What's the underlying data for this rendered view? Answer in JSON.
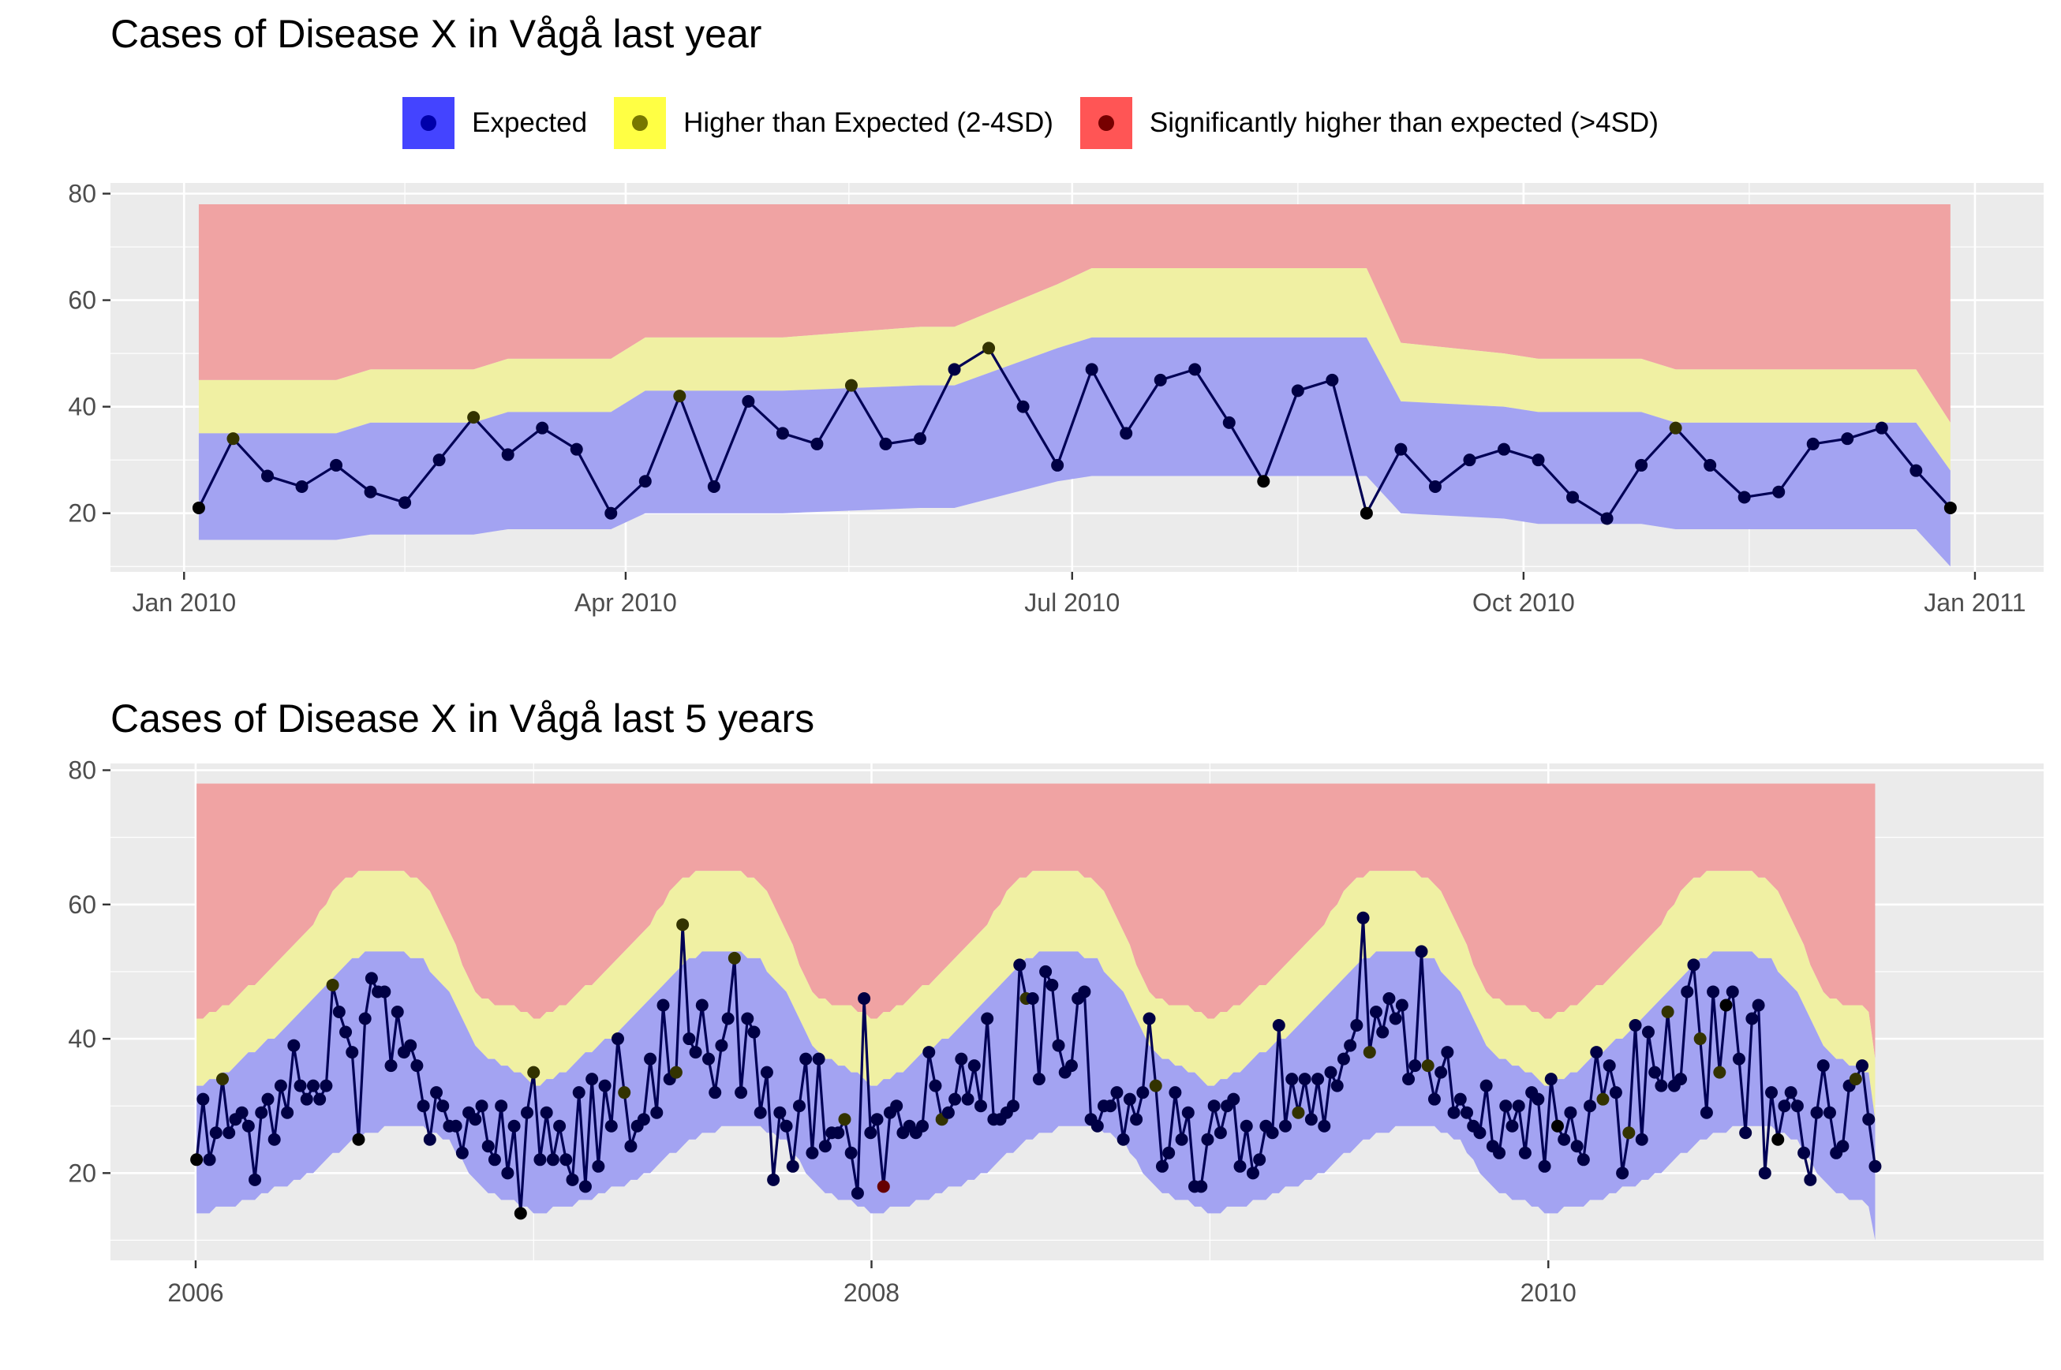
{
  "legend": {
    "items": [
      {
        "label": "Expected",
        "fill": "#4444ff",
        "dot": "#0000aa"
      },
      {
        "label": "Higher than Expected (2-4SD)",
        "fill": "#ffff44",
        "dot": "#777700"
      },
      {
        "label": "Significantly higher than expected (>4SD)",
        "fill": "#ff5555",
        "dot": "#770000"
      }
    ]
  },
  "colors": {
    "panel_bg": "#ebebeb",
    "grid": "#ffffff",
    "expected_band": "#a3a3f2",
    "higher_band": "#f0f0a3",
    "significant_band": "#f0a3a3",
    "line": "#000055",
    "point_expected": "#000044",
    "point_higher": "#333300",
    "point_significant": "#660000"
  },
  "chart_data": [
    {
      "type": "line",
      "title": "Cases of Disease X in Vågå last year",
      "xlabel": "",
      "ylabel": "",
      "x_range": [
        "2009-12-17",
        "2011-01-15"
      ],
      "ylim": [
        9,
        82
      ],
      "y_ticks": [
        20,
        40,
        60,
        80
      ],
      "x_ticks": [
        {
          "date": "2010-01-01",
          "label": "Jan 2010"
        },
        {
          "date": "2010-04-01",
          "label": "Apr 2010"
        },
        {
          "date": "2010-07-01",
          "label": "Jul 2010"
        },
        {
          "date": "2010-10-01",
          "label": "Oct 2010"
        },
        {
          "date": "2011-01-01",
          "label": "Jan 2011"
        }
      ],
      "band_dates": [
        "2010-01-04",
        "2010-02-01",
        "2010-02-08",
        "2010-03-01",
        "2010-03-08",
        "2010-03-29",
        "2010-04-05",
        "2010-05-03",
        "2010-05-31",
        "2010-06-07",
        "2010-06-28",
        "2010-07-05",
        "2010-08-23",
        "2010-08-30",
        "2010-09-06",
        "2010-09-27",
        "2010-10-04",
        "2010-10-25",
        "2010-11-01",
        "2010-12-20",
        "2010-12-27"
      ],
      "band_lower": [
        15,
        15,
        16,
        16,
        17,
        17,
        20,
        20,
        21,
        21,
        26,
        27,
        27,
        27,
        20,
        19,
        18,
        18,
        17,
        17,
        10
      ],
      "band_upper_expected": [
        35,
        35,
        37,
        37,
        39,
        39,
        43,
        43,
        44,
        44,
        51,
        53,
        53,
        53,
        41,
        40,
        39,
        39,
        37,
        37,
        28
      ],
      "band_upper_higher": [
        45,
        45,
        47,
        47,
        49,
        49,
        53,
        53,
        55,
        55,
        63,
        66,
        66,
        66,
        52,
        50,
        49,
        49,
        47,
        47,
        37
      ],
      "band_top": 78,
      "points": {
        "dates": [
          "2010-01-04",
          "2010-01-11",
          "2010-01-18",
          "2010-01-25",
          "2010-02-01",
          "2010-02-08",
          "2010-02-15",
          "2010-02-22",
          "2010-03-01",
          "2010-03-08",
          "2010-03-15",
          "2010-03-22",
          "2010-03-29",
          "2010-04-05",
          "2010-04-12",
          "2010-04-19",
          "2010-04-26",
          "2010-05-03",
          "2010-05-10",
          "2010-05-17",
          "2010-05-24",
          "2010-05-31",
          "2010-06-07",
          "2010-06-14",
          "2010-06-21",
          "2010-06-28",
          "2010-07-05",
          "2010-07-12",
          "2010-07-19",
          "2010-07-26",
          "2010-08-02",
          "2010-08-09",
          "2010-08-16",
          "2010-08-23",
          "2010-08-30",
          "2010-09-06",
          "2010-09-13",
          "2010-09-20",
          "2010-09-27",
          "2010-10-04",
          "2010-10-11",
          "2010-10-18",
          "2010-10-25",
          "2010-11-01",
          "2010-11-08",
          "2010-11-15",
          "2010-11-22",
          "2010-11-29",
          "2010-12-06",
          "2010-12-13",
          "2010-12-20",
          "2010-12-27"
        ],
        "values": [
          21,
          34,
          27,
          25,
          29,
          24,
          22,
          30,
          38,
          31,
          36,
          32,
          20,
          26,
          42,
          25,
          41,
          35,
          33,
          44,
          33,
          34,
          47,
          51,
          40,
          29,
          47,
          35,
          45,
          47,
          37,
          26,
          43,
          45,
          20,
          32,
          25,
          30,
          32,
          30,
          23,
          19,
          29,
          36,
          29,
          23,
          24,
          33,
          34,
          36,
          28,
          21
        ],
        "status": [
          "low",
          "higher",
          "expected",
          "expected",
          "expected",
          "expected",
          "expected",
          "expected",
          "higher",
          "expected",
          "expected",
          "expected",
          "expected",
          "expected",
          "higher",
          "expected",
          "expected",
          "expected",
          "expected",
          "higher",
          "expected",
          "expected",
          "expected",
          "higher",
          "expected",
          "expected",
          "expected",
          "expected",
          "expected",
          "expected",
          "expected",
          "low",
          "expected",
          "expected",
          "low",
          "expected",
          "expected",
          "expected",
          "expected",
          "expected",
          "expected",
          "expected",
          "expected",
          "higher",
          "expected",
          "expected",
          "expected",
          "expected",
          "expected",
          "expected",
          "expected",
          "low"
        ]
      }
    },
    {
      "type": "line",
      "title": "Cases of Disease X in Vågå last 5 years",
      "xlabel": "",
      "ylabel": "",
      "x_range": [
        "2005-10-01",
        "2011-06-20"
      ],
      "ylim": [
        7,
        81
      ],
      "y_ticks": [
        20,
        40,
        60,
        80
      ],
      "x_ticks": [
        {
          "date": "2006-01-01",
          "label": "2006"
        },
        {
          "date": "2008-01-01",
          "label": "2008"
        },
        {
          "date": "2010-01-01",
          "label": "2010"
        }
      ],
      "season_lower": [
        14,
        15,
        16,
        18,
        20,
        23,
        26,
        27,
        27,
        25,
        18,
        16,
        15
      ],
      "season_upper_expected": [
        33,
        35,
        38,
        41,
        45,
        50,
        53,
        53,
        52,
        47,
        38,
        36,
        34
      ],
      "season_upper_higher": [
        43,
        45,
        48,
        52,
        56,
        63,
        65,
        65,
        64,
        56,
        46,
        45,
        44
      ],
      "band_top": 78,
      "points": {
        "start_date": "2006-01-02",
        "interval_days": 7,
        "values": [
          22,
          31,
          22,
          26,
          34,
          26,
          28,
          29,
          27,
          19,
          29,
          31,
          25,
          33,
          29,
          39,
          33,
          31,
          33,
          31,
          33,
          48,
          44,
          41,
          38,
          25,
          43,
          49,
          47,
          47,
          36,
          44,
          38,
          39,
          36,
          30,
          25,
          32,
          30,
          27,
          27,
          23,
          29,
          28,
          30,
          24,
          22,
          30,
          20,
          27,
          14,
          29,
          35,
          22,
          29,
          22,
          27,
          22,
          19,
          32,
          18,
          34,
          21,
          33,
          27,
          40,
          32,
          24,
          27,
          28,
          37,
          29,
          45,
          34,
          35,
          57,
          40,
          38,
          45,
          37,
          32,
          39,
          43,
          52,
          32,
          43,
          41,
          29,
          35,
          19,
          29,
          27,
          21,
          30,
          37,
          23,
          37,
          24,
          26,
          26,
          28,
          23,
          17,
          46,
          26,
          28,
          18,
          29,
          30,
          26,
          27,
          26,
          27,
          38,
          33,
          28,
          29,
          31,
          37,
          31,
          36,
          30,
          43,
          28,
          28,
          29,
          30,
          51,
          46,
          46,
          34,
          50,
          48,
          39,
          35,
          36,
          46,
          47,
          28,
          27,
          30,
          30,
          32,
          25,
          31,
          28,
          32,
          43,
          33,
          21,
          23,
          32,
          25,
          29,
          18,
          18,
          25,
          30,
          26,
          30,
          31,
          21,
          27,
          20,
          22,
          27,
          26,
          42,
          27,
          34,
          29,
          34,
          28,
          34,
          27,
          35,
          33,
          37,
          39,
          42,
          58,
          38,
          44,
          41,
          46,
          43,
          45,
          34,
          36,
          53,
          36,
          31,
          35,
          38,
          29,
          31,
          29,
          27,
          26,
          33,
          24,
          23,
          30,
          27,
          30,
          23,
          32,
          31,
          21,
          34,
          27,
          25,
          29,
          24,
          22,
          30,
          38,
          31,
          36,
          32,
          20,
          26,
          42,
          25,
          41,
          35,
          33,
          44,
          33,
          34,
          47,
          51,
          40,
          29,
          47,
          35,
          45,
          47,
          37,
          26,
          43,
          45,
          20,
          32,
          25,
          30,
          32,
          30,
          23,
          19,
          29,
          36,
          29,
          23,
          24,
          33,
          34,
          36,
          28,
          21
        ],
        "higher_indices": [
          4,
          21,
          52,
          66,
          74,
          75,
          83,
          100,
          115,
          128,
          148,
          170,
          181,
          190,
          217,
          221,
          227,
          232,
          235,
          256
        ],
        "significant_indices": [
          106
        ],
        "low_indices": [
          0,
          25,
          50,
          210,
          236,
          244,
          261
        ]
      }
    }
  ]
}
